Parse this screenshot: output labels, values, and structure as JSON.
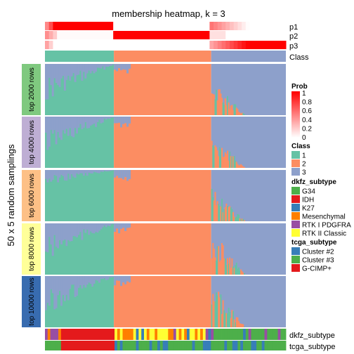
{
  "chart_data": {
    "type": "heatmap",
    "title": "membership heatmap, k = 3",
    "ylabel": "50 x 5 random samplings",
    "track_labels": [
      "p1",
      "p2",
      "p3",
      "Class"
    ],
    "bottom_track_labels": [
      "dkfz_subtype",
      "tcga_subtype"
    ],
    "row_groups": [
      {
        "label": "top 2000 rows",
        "color": "#7fc97f"
      },
      {
        "label": "top 4000 rows",
        "color": "#beaed4"
      },
      {
        "label": "top 6000 rows",
        "color": "#fdc086"
      },
      {
        "label": "top 8000 rows",
        "color": "#ffff99"
      },
      {
        "label": "top 10000 rows",
        "color": "#386cb0"
      }
    ],
    "class_column_fractions": [
      0.286,
      0.404,
      0.31
    ],
    "legends": {
      "prob": {
        "title": "Prob",
        "ticks": [
          "1",
          "0.8",
          "0.6",
          "0.4",
          "0.2",
          "0"
        ],
        "low_color": "#ffffff",
        "high_color": "#ff0000"
      },
      "class": {
        "title": "Class",
        "entries": [
          {
            "label": "1",
            "color": "#66c2a5"
          },
          {
            "label": "2",
            "color": "#fc8d62"
          },
          {
            "label": "3",
            "color": "#8da0cb"
          }
        ]
      },
      "dkfz_subtype": {
        "title": "dkfz_subtype",
        "entries": [
          {
            "label": "G34",
            "color": "#4daf4a"
          },
          {
            "label": "IDH",
            "color": "#e41a1c"
          },
          {
            "label": "K27",
            "color": "#377eb8"
          },
          {
            "label": "Mesenchymal",
            "color": "#ff7f00"
          },
          {
            "label": "RTK I PDGFRA",
            "color": "#984ea3"
          },
          {
            "label": "RTK II Classic",
            "color": "#ffff33"
          }
        ]
      },
      "tcga_subtype": {
        "title": "tcga_subtype",
        "entries": [
          {
            "label": "Cluster #2",
            "color": "#377eb8"
          },
          {
            "label": "Cluster #3",
            "color": "#4daf4a"
          },
          {
            "label": "G-CIMP+",
            "color": "#e41a1c"
          }
        ]
      }
    }
  }
}
